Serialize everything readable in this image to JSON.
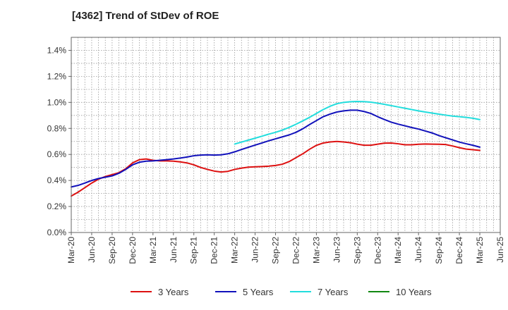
{
  "chart_data": {
    "type": "line",
    "title": "[4362]  Trend of StDev of ROE",
    "xlabel": "",
    "ylabel": "",
    "x_ticks": [
      "Mar-20",
      "Jun-20",
      "Sep-20",
      "Dec-20",
      "Mar-21",
      "Jun-21",
      "Sep-21",
      "Dec-21",
      "Mar-22",
      "Jun-22",
      "Sep-22",
      "Dec-22",
      "Mar-23",
      "Jun-23",
      "Sep-23",
      "Dec-23",
      "Mar-24",
      "Jun-24",
      "Sep-24",
      "Dec-24",
      "Mar-25",
      "Jun-25"
    ],
    "y_ticks": [
      "0.0%",
      "0.2%",
      "0.4%",
      "0.6%",
      "0.8%",
      "1.0%",
      "1.2%",
      "1.4%"
    ],
    "ylim": [
      0,
      1.5
    ],
    "grid": true,
    "legend_position": "bottom",
    "series": [
      {
        "name": "3 Years",
        "color": "#dd1111",
        "x": [
          "2020-03",
          "2020-04",
          "2020-05",
          "2020-06",
          "2020-07",
          "2020-08",
          "2020-09",
          "2020-10",
          "2020-11",
          "2020-12",
          "2021-01",
          "2021-02",
          "2021-03",
          "2021-04",
          "2021-05",
          "2021-06",
          "2021-07",
          "2021-08",
          "2021-09",
          "2021-10",
          "2021-11",
          "2021-12",
          "2022-01",
          "2022-02",
          "2022-03",
          "2022-04",
          "2022-05",
          "2022-06",
          "2022-07",
          "2022-08",
          "2022-09",
          "2022-10",
          "2022-11",
          "2022-12",
          "2023-01",
          "2023-02",
          "2023-03",
          "2023-04",
          "2023-05",
          "2023-06",
          "2023-07",
          "2023-08",
          "2023-09",
          "2023-10",
          "2023-11",
          "2023-12",
          "2024-01",
          "2024-02",
          "2024-03",
          "2024-04",
          "2024-05",
          "2024-06",
          "2024-07",
          "2024-08",
          "2024-09",
          "2024-10",
          "2024-11",
          "2024-12",
          "2025-01",
          "2025-02",
          "2025-03"
        ],
        "values": [
          0.28,
          0.31,
          0.345,
          0.38,
          0.41,
          0.43,
          0.445,
          0.46,
          0.49,
          0.535,
          0.56,
          0.565,
          0.555,
          0.55,
          0.55,
          0.548,
          0.543,
          0.535,
          0.52,
          0.5,
          0.485,
          0.472,
          0.465,
          0.47,
          0.485,
          0.495,
          0.502,
          0.505,
          0.507,
          0.51,
          0.515,
          0.525,
          0.545,
          0.575,
          0.605,
          0.64,
          0.67,
          0.688,
          0.696,
          0.7,
          0.696,
          0.69,
          0.679,
          0.671,
          0.671,
          0.679,
          0.687,
          0.688,
          0.682,
          0.674,
          0.674,
          0.678,
          0.68,
          0.679,
          0.678,
          0.676,
          0.665,
          0.652,
          0.641,
          0.636,
          0.631
        ]
      },
      {
        "name": "5 Years",
        "color": "#1111bb",
        "x": [
          "2020-03",
          "2020-04",
          "2020-05",
          "2020-06",
          "2020-07",
          "2020-08",
          "2020-09",
          "2020-10",
          "2020-11",
          "2020-12",
          "2021-01",
          "2021-02",
          "2021-03",
          "2021-04",
          "2021-05",
          "2021-06",
          "2021-07",
          "2021-08",
          "2021-09",
          "2021-10",
          "2021-11",
          "2021-12",
          "2022-01",
          "2022-02",
          "2022-03",
          "2022-04",
          "2022-05",
          "2022-06",
          "2022-07",
          "2022-08",
          "2022-09",
          "2022-10",
          "2022-11",
          "2022-12",
          "2023-01",
          "2023-02",
          "2023-03",
          "2023-04",
          "2023-05",
          "2023-06",
          "2023-07",
          "2023-08",
          "2023-09",
          "2023-10",
          "2023-11",
          "2023-12",
          "2024-01",
          "2024-02",
          "2024-03",
          "2024-04",
          "2024-05",
          "2024-06",
          "2024-07",
          "2024-08",
          "2024-09",
          "2024-10",
          "2024-11",
          "2024-12",
          "2025-01",
          "2025-02",
          "2025-03"
        ],
        "values": [
          0.35,
          0.362,
          0.38,
          0.4,
          0.415,
          0.425,
          0.435,
          0.455,
          0.485,
          0.52,
          0.54,
          0.548,
          0.55,
          0.555,
          0.56,
          0.565,
          0.572,
          0.58,
          0.59,
          0.595,
          0.597,
          0.595,
          0.597,
          0.605,
          0.62,
          0.638,
          0.655,
          0.672,
          0.688,
          0.705,
          0.72,
          0.735,
          0.75,
          0.77,
          0.797,
          0.83,
          0.86,
          0.89,
          0.91,
          0.926,
          0.935,
          0.94,
          0.94,
          0.93,
          0.915,
          0.89,
          0.868,
          0.848,
          0.833,
          0.82,
          0.807,
          0.795,
          0.78,
          0.765,
          0.745,
          0.728,
          0.712,
          0.695,
          0.682,
          0.67,
          0.656
        ]
      },
      {
        "name": "7 Years",
        "color": "#22dddd",
        "x": [
          "2022-03",
          "2022-04",
          "2022-05",
          "2022-06",
          "2022-07",
          "2022-08",
          "2022-09",
          "2022-10",
          "2022-11",
          "2022-12",
          "2023-01",
          "2023-02",
          "2023-03",
          "2023-04",
          "2023-05",
          "2023-06",
          "2023-07",
          "2023-08",
          "2023-09",
          "2023-10",
          "2023-11",
          "2023-12",
          "2024-01",
          "2024-02",
          "2024-03",
          "2024-04",
          "2024-05",
          "2024-06",
          "2024-07",
          "2024-08",
          "2024-09",
          "2024-10",
          "2024-11",
          "2024-12",
          "2025-01",
          "2025-02",
          "2025-03"
        ],
        "values": [
          0.68,
          0.695,
          0.71,
          0.725,
          0.74,
          0.756,
          0.77,
          0.787,
          0.808,
          0.832,
          0.858,
          0.885,
          0.915,
          0.945,
          0.97,
          0.99,
          1.0,
          1.005,
          1.007,
          1.006,
          1.002,
          0.994,
          0.985,
          0.975,
          0.965,
          0.955,
          0.945,
          0.935,
          0.926,
          0.918,
          0.91,
          0.902,
          0.895,
          0.89,
          0.885,
          0.878,
          0.868
        ]
      },
      {
        "name": "10 Years",
        "color": "#118811",
        "x": [],
        "values": []
      }
    ]
  }
}
